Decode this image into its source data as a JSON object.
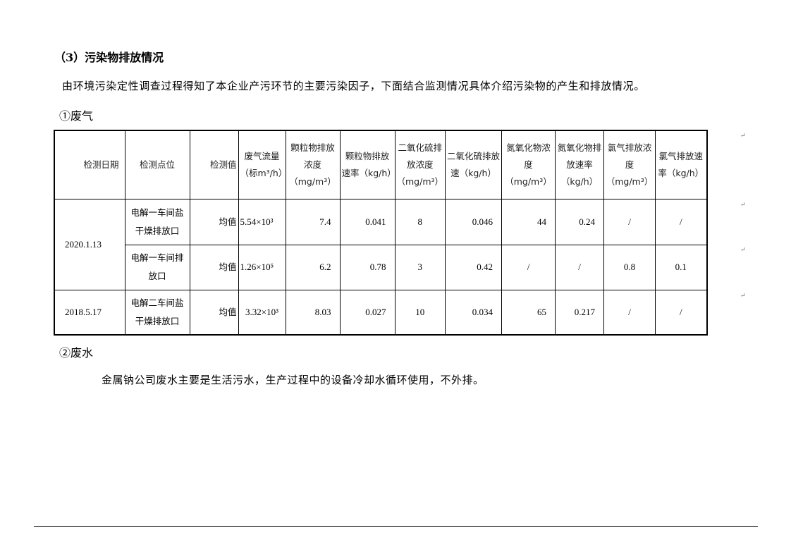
{
  "heading": "（3）污染物排放情况",
  "intro": "由环境污染定性调查过程得知了本企业产污环节的主要污染因子，下面结合监测情况具体介绍污染物的产生和排放情况。",
  "gas_title": "①废气",
  "table": {
    "headers": [
      "检测日期",
      "检测点位",
      "检测值",
      "废气流量（标m³/h）",
      "颗粒物排放浓度（mg/m³）",
      "颗粒物排放速率（kg/h）",
      "二氧化硫排放浓度（mg/m³）",
      "二氧化硫排放速（kg/h）",
      "氮氧化物浓度（mg/m³）",
      "氮氧化物排放速率（kg/h）",
      "氯气排放浓度（mg/m³）",
      "氯气排放速率（kg/h）"
    ],
    "dates": [
      "2020.1.13",
      "2018.5.17"
    ],
    "rows": [
      {
        "location": "电解一车间盐干燥排放口",
        "stat": "均值",
        "flow": "5.54×10³",
        "pm_conc": "7.4",
        "pm_rate": "0.041",
        "so2_conc": "8",
        "so2_rate": "0.046",
        "nox_conc": "44",
        "nox_rate": "0.24",
        "cl_conc": "/",
        "cl_rate": "/"
      },
      {
        "location": "电解一车间排放口",
        "stat": "均值",
        "flow": "1.26×10⁵",
        "pm_conc": "6.2",
        "pm_rate": "0.78",
        "so2_conc": "3",
        "so2_rate": "0.42",
        "nox_conc": "/",
        "nox_rate": "/",
        "cl_conc": "0.8",
        "cl_rate": "0.1"
      },
      {
        "location": "电解二车间盐干燥排放口",
        "stat": "均值",
        "flow": "3.32×10³",
        "pm_conc": "8.03",
        "pm_rate": "0.027",
        "so2_conc": "10",
        "so2_rate": "0.034",
        "nox_conc": "65",
        "nox_rate": "0.217",
        "cl_conc": "/",
        "cl_rate": "/"
      }
    ]
  },
  "water_title": "②废水",
  "water_text": "金属钠公司废水主要是生活污水，生产过程中的设备冷却水循环使用，不外排。"
}
